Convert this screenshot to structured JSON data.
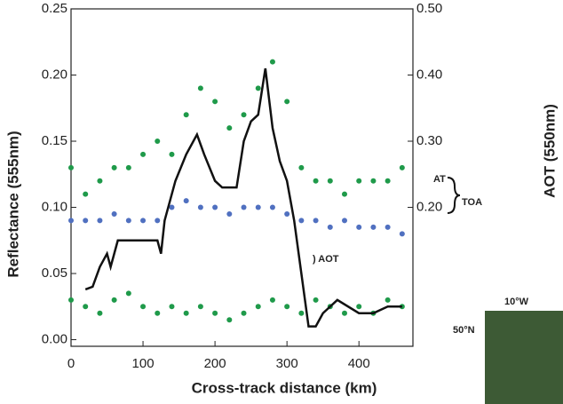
{
  "chart_data": {
    "type": "scatter",
    "x_label": "Cross-track distance (km)",
    "y_label": "Reflectance (555nm)",
    "y2_label": "AOT (550nm)",
    "annotations": [
      "AT",
      "TOA",
      ") AOT",
      "10°W",
      "50°N"
    ],
    "xlim": [
      0,
      475
    ],
    "xticks": [
      0,
      100,
      200,
      300,
      400
    ],
    "ylim": [
      -0.005,
      0.25
    ],
    "yticks": [
      {
        "value": 0,
        "label": "0.00"
      },
      0.05,
      {
        "value": 0.1,
        "label": "0.10"
      },
      0.15,
      {
        "value": 0.2,
        "label": "0.20"
      },
      0.25
    ],
    "y2lim": [
      -0.01,
      0.5
    ],
    "y2ticks": [
      {
        "value": 0.2,
        "label": "0.20"
      },
      {
        "value": 0.3,
        "label": "0.30"
      },
      {
        "value": 0.4,
        "label": "0.40"
      },
      {
        "value": 0.5,
        "label": "0.50"
      }
    ],
    "series": [
      {
        "color": "#1f9a4a",
        "mode": "points",
        "x": [
          0,
          20,
          40,
          60,
          80,
          100,
          120,
          140,
          160,
          180,
          200,
          220,
          240,
          260,
          280,
          300,
          320,
          340,
          360,
          380,
          400,
          420,
          440,
          460
        ],
        "values": [
          0.13,
          0.11,
          0.12,
          0.13,
          0.13,
          0.14,
          0.15,
          0.14,
          0.17,
          0.19,
          0.18,
          0.16,
          0.17,
          0.19,
          0.21,
          0.18,
          0.13,
          0.12,
          0.12,
          0.11,
          0.12,
          0.12,
          0.12,
          0.13
        ]
      },
      {
        "color": "#5070c0",
        "mode": "points",
        "x": [
          0,
          20,
          40,
          60,
          80,
          100,
          120,
          140,
          160,
          180,
          200,
          220,
          240,
          260,
          280,
          300,
          320,
          340,
          360,
          380,
          400,
          420,
          440,
          460
        ],
        "values": [
          0.09,
          0.09,
          0.09,
          0.095,
          0.09,
          0.09,
          0.09,
          0.1,
          0.105,
          0.1,
          0.1,
          0.095,
          0.1,
          0.1,
          0.1,
          0.095,
          0.09,
          0.09,
          0.085,
          0.09,
          0.085,
          0.085,
          0.085,
          0.08
        ]
      },
      {
        "color": "#1f9a4a",
        "mode": "points",
        "x": [
          0,
          20,
          40,
          60,
          80,
          100,
          120,
          140,
          160,
          180,
          200,
          220,
          240,
          260,
          280,
          300,
          320,
          340,
          360,
          380,
          400,
          420,
          440,
          460
        ],
        "values": [
          0.03,
          0.025,
          0.02,
          0.03,
          0.035,
          0.025,
          0.02,
          0.025,
          0.02,
          0.025,
          0.02,
          0.015,
          0.02,
          0.025,
          0.03,
          0.025,
          0.02,
          0.03,
          0.025,
          0.02,
          0.025,
          0.02,
          0.03,
          0.025
        ]
      },
      {
        "color": "#111111",
        "mode": "line",
        "axis": "y2",
        "x": [
          20,
          30,
          40,
          50,
          55,
          65,
          80,
          120,
          125,
          130,
          145,
          160,
          175,
          185,
          200,
          210,
          230,
          240,
          250,
          260,
          270,
          280,
          290,
          300,
          310,
          320,
          330,
          340,
          350,
          370,
          400,
          420,
          440,
          460
        ],
        "values": [
          0.076,
          0.08,
          0.11,
          0.13,
          0.11,
          0.15,
          0.15,
          0.15,
          0.13,
          0.18,
          0.24,
          0.28,
          0.31,
          0.28,
          0.24,
          0.23,
          0.23,
          0.3,
          0.33,
          0.34,
          0.41,
          0.32,
          0.27,
          0.24,
          0.18,
          0.1,
          0.02,
          0.02,
          0.04,
          0.06,
          0.04,
          0.04,
          0.05,
          0.05
        ]
      }
    ]
  }
}
